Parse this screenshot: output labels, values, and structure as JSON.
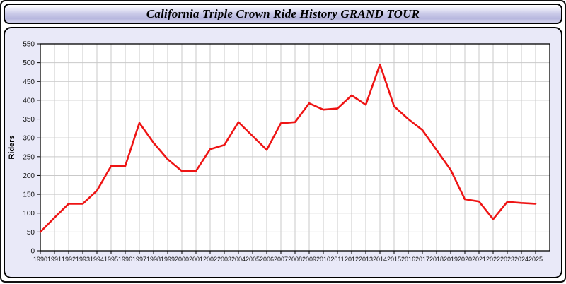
{
  "header": {
    "title": "California Triple Crown Ride History GRAND TOUR"
  },
  "chart_data": {
    "type": "line",
    "title": "California Triple Crown Ride History GRAND TOUR",
    "xlabel": "",
    "ylabel": "Riders",
    "x": [
      1990,
      1991,
      1992,
      1993,
      1994,
      1995,
      1996,
      1997,
      1998,
      1999,
      2000,
      2001,
      2002,
      2003,
      2004,
      2005,
      2006,
      2007,
      2008,
      2009,
      2010,
      2011,
      2012,
      2013,
      2014,
      2015,
      2016,
      2017,
      2018,
      2019,
      2020,
      2021,
      2022,
      2023,
      2024,
      2025
    ],
    "series": [
      {
        "name": "Riders",
        "values": [
          50,
          88,
          125,
          125,
          160,
          225,
          225,
          340,
          287,
          243,
          212,
          212,
          270,
          281,
          342,
          305,
          268,
          339,
          342,
          392,
          375,
          378,
          413,
          388,
          495,
          384,
          350,
          321,
          268,
          215,
          137,
          131,
          84,
          130,
          127,
          125
        ]
      }
    ],
    "ylim": [
      0,
      550
    ],
    "ytick_step": 50,
    "grid": true,
    "legend_position": "none",
    "colors": {
      "line": "#ee1414",
      "plot_background": "#ffffff",
      "panel_background": "#e9e9f8",
      "grid_line": "#c9c9c9",
      "axis_frame": "#000000",
      "tick_label": "#111111"
    }
  }
}
